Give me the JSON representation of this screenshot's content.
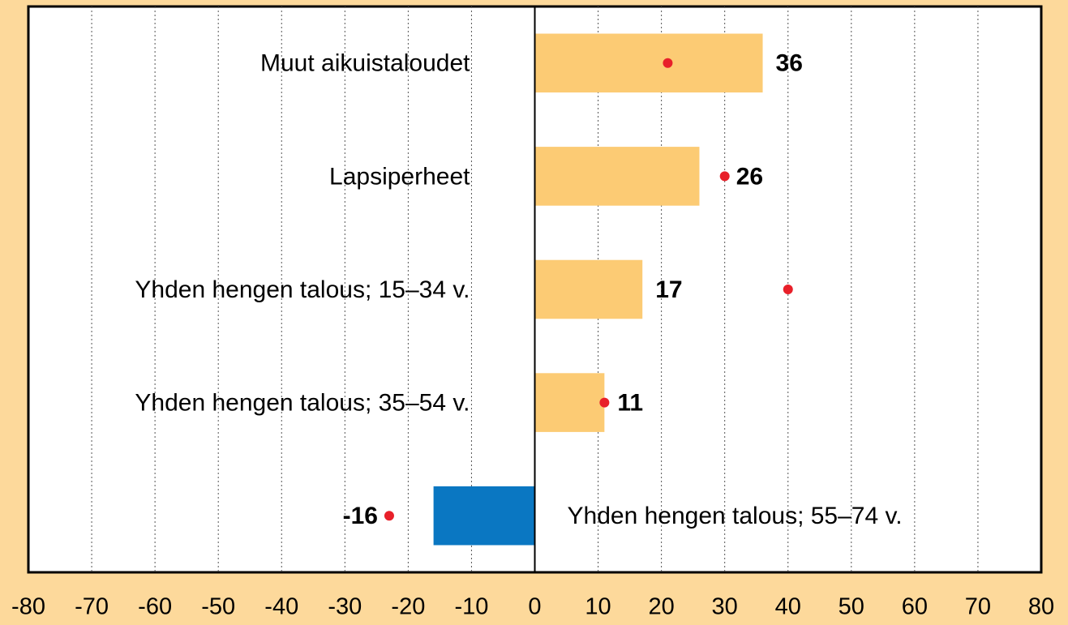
{
  "chart_data": {
    "type": "bar",
    "orientation": "horizontal",
    "categories": [
      "Muut aikuistaloudet",
      "Lapsiperheet",
      "Yhden hengen talous; 15–34 v.",
      "Yhden hengen talous; 35–54 v.",
      "Yhden hengen talous; 55–74 v."
    ],
    "series": [
      {
        "color": "#fccb74",
        "negative_color": "#0a77c2",
        "values": [
          36,
          26,
          17,
          11,
          -16
        ]
      },
      {
        "color": "#e8202a",
        "marker": "dot",
        "values": [
          21,
          30,
          40,
          11,
          -23
        ]
      }
    ],
    "xlim": [
      -80,
      80
    ],
    "xticks": [
      -80,
      -70,
      -60,
      -50,
      -40,
      -30,
      -20,
      -10,
      0,
      10,
      20,
      30,
      40,
      50,
      60,
      70,
      80
    ],
    "grid": true
  }
}
